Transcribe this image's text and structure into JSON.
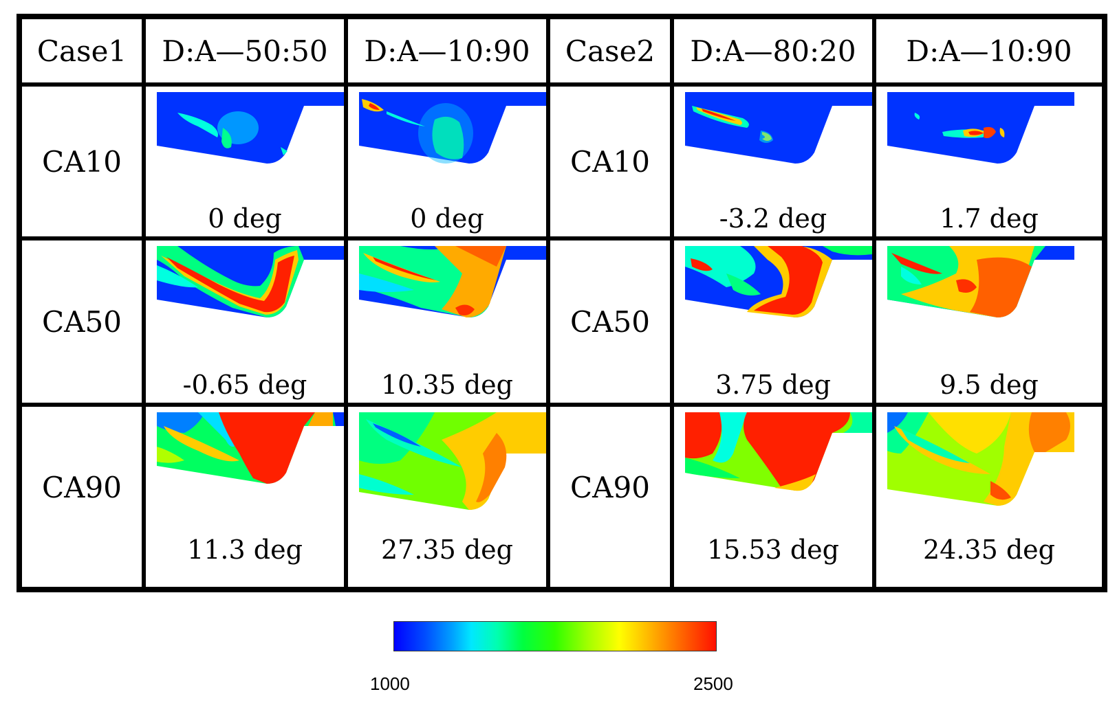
{
  "header": {
    "case1": "Case1",
    "case1_col1": "D:A—50:50",
    "case1_col2": "D:A—10:90",
    "case2": "Case2",
    "case2_col1": "D:A—80:20",
    "case2_col2": "D:A—10:90"
  },
  "rows": [
    {
      "label": "CA10",
      "case1_col1": "0 deg",
      "case1_col2": "0 deg",
      "case2_col1": "-3.2 deg",
      "case2_col2": "1.7 deg"
    },
    {
      "label": "CA50",
      "case1_col1": "-0.65 deg",
      "case1_col2": "10.35 deg",
      "case2_col1": "3.75 deg",
      "case2_col2": "9.5 deg"
    },
    {
      "label": "CA90",
      "case1_col1": "11.3 deg",
      "case1_col2": "27.35 deg",
      "case2_col1": "15.53 deg",
      "case2_col2": "24.35 deg"
    }
  ],
  "colorbar": {
    "min_label": "1000",
    "max_label": "2500",
    "min": 1000,
    "max": 2500,
    "colors": [
      "#0000ff",
      "#00e8ff",
      "#00ff40",
      "#ffff00",
      "#ff1000"
    ]
  }
}
